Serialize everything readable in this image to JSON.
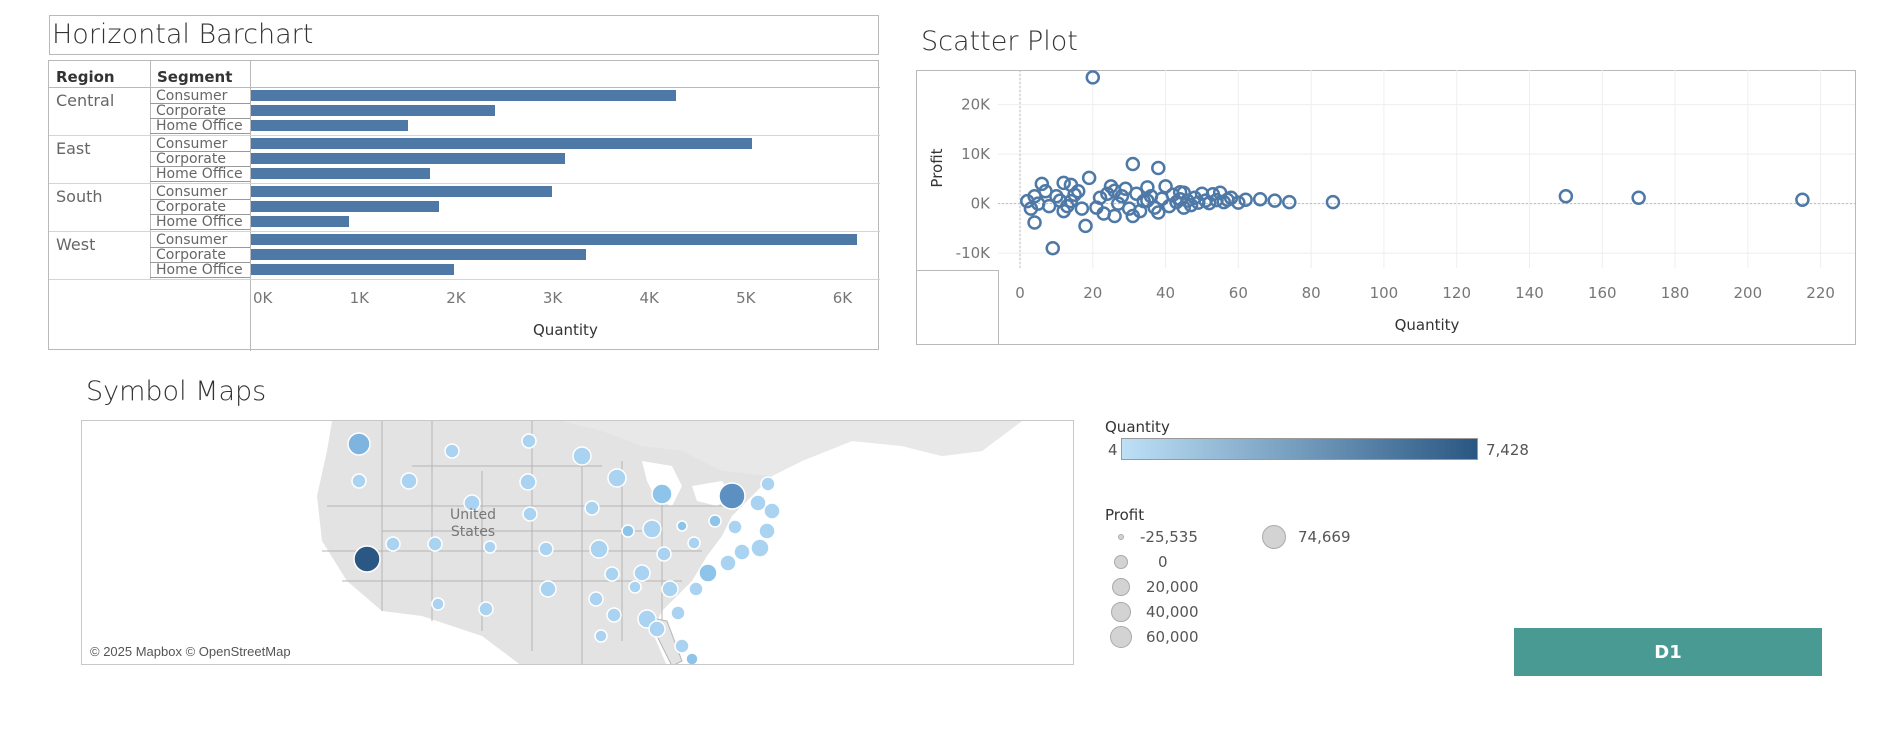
{
  "chart_data": [
    {
      "type": "bar",
      "title": "Horizontal Barchart",
      "headers": {
        "region": "Region",
        "segment": "Segment"
      },
      "regions": [
        {
          "name": "Central",
          "segments": [
            {
              "name": "Consumer",
              "value": 4400
            },
            {
              "name": "Corporate",
              "value": 2530
            },
            {
              "name": "Home Office",
              "value": 1620
            }
          ]
        },
        {
          "name": "East",
          "segments": [
            {
              "name": "Consumer",
              "value": 5190
            },
            {
              "name": "Corporate",
              "value": 3250
            },
            {
              "name": "Home Office",
              "value": 1850
            }
          ]
        },
        {
          "name": "South",
          "segments": [
            {
              "name": "Consumer",
              "value": 3120
            },
            {
              "name": "Corporate",
              "value": 1950
            },
            {
              "name": "Home Office",
              "value": 1010
            }
          ]
        },
        {
          "name": "West",
          "segments": [
            {
              "name": "Consumer",
              "value": 6270
            },
            {
              "name": "Corporate",
              "value": 3470
            },
            {
              "name": "Home Office",
              "value": 2100
            }
          ]
        }
      ],
      "xlabel": "Quantity",
      "xlim": [
        0,
        6500
      ],
      "xticks": [
        {
          "value": 0,
          "label": "0K"
        },
        {
          "value": 1000,
          "label": "1K"
        },
        {
          "value": 2000,
          "label": "2K"
        },
        {
          "value": 3000,
          "label": "3K"
        },
        {
          "value": 4000,
          "label": "4K"
        },
        {
          "value": 5000,
          "label": "5K"
        },
        {
          "value": 6000,
          "label": "6K"
        }
      ],
      "bar_color": "#4e79a7"
    },
    {
      "type": "scatter",
      "title": "Scatter Plot",
      "xlabel": "Quantity",
      "ylabel": "Profit",
      "xlim": [
        0,
        230
      ],
      "ylim": [
        -13000,
        27000
      ],
      "xticks": [
        0,
        20,
        40,
        60,
        80,
        100,
        120,
        140,
        160,
        180,
        200,
        220
      ],
      "yticks": [
        {
          "value": 20000,
          "label": "20K"
        },
        {
          "value": 10000,
          "label": "10K"
        },
        {
          "value": 0,
          "label": "0K"
        },
        {
          "value": -10000,
          "label": "-10K"
        }
      ],
      "grid": true,
      "marker_color": "#4e79a7",
      "points": [
        [
          20,
          25500
        ],
        [
          31,
          8000
        ],
        [
          38,
          7200
        ],
        [
          19,
          5200
        ],
        [
          6,
          4000
        ],
        [
          12,
          4200
        ],
        [
          14,
          3800
        ],
        [
          25,
          3500
        ],
        [
          29,
          3000
        ],
        [
          35,
          3300
        ],
        [
          40,
          3500
        ],
        [
          45,
          2200
        ],
        [
          50,
          2000
        ],
        [
          53,
          1900
        ],
        [
          55,
          2200
        ],
        [
          58,
          1200
        ],
        [
          62,
          800
        ],
        [
          66,
          900
        ],
        [
          70,
          600
        ],
        [
          74,
          300
        ],
        [
          86,
          300
        ],
        [
          150,
          1500
        ],
        [
          170,
          1200
        ],
        [
          215,
          800
        ],
        [
          4,
          -3800
        ],
        [
          18,
          -4500
        ],
        [
          9,
          -9000
        ],
        [
          26,
          -2500
        ],
        [
          33,
          -1500
        ],
        [
          45,
          -800
        ],
        [
          2,
          500
        ],
        [
          4,
          1500
        ],
        [
          8,
          -500
        ],
        [
          10,
          1500
        ],
        [
          12,
          -1500
        ],
        [
          14,
          500
        ],
        [
          16,
          2500
        ],
        [
          17,
          -1000
        ],
        [
          22,
          1200
        ],
        [
          23,
          -2000
        ],
        [
          24,
          2000
        ],
        [
          27,
          0
        ],
        [
          28,
          1500
        ],
        [
          30,
          -1000
        ],
        [
          32,
          2000
        ],
        [
          34,
          500
        ],
        [
          36,
          1500
        ],
        [
          37,
          -800
        ],
        [
          39,
          1000
        ],
        [
          41,
          -500
        ],
        [
          42,
          1800
        ],
        [
          43,
          300
        ],
        [
          44,
          900
        ],
        [
          46,
          600
        ],
        [
          47,
          -300
        ],
        [
          48,
          1200
        ],
        [
          49,
          200
        ],
        [
          51,
          600
        ],
        [
          52,
          100
        ],
        [
          54,
          700
        ],
        [
          56,
          300
        ],
        [
          57,
          800
        ],
        [
          60,
          200
        ],
        [
          3,
          -1000
        ],
        [
          5,
          0
        ],
        [
          7,
          2500
        ],
        [
          11,
          600
        ],
        [
          13,
          -500
        ],
        [
          15,
          1800
        ],
        [
          21,
          -800
        ],
        [
          26,
          2600
        ],
        [
          31,
          -2500
        ],
        [
          35,
          600
        ],
        [
          38,
          -1800
        ],
        [
          44,
          2300
        ]
      ]
    }
  ],
  "map": {
    "title": "Symbol Maps",
    "country_label_1": "United",
    "country_label_2": "States",
    "attribution": "© 2025 Mapbox © OpenStreetMap"
  },
  "legend_quantity": {
    "title": "Quantity",
    "min": "4",
    "max": "7,428"
  },
  "legend_profit": {
    "title": "Profit",
    "items": [
      "-25,535",
      "0",
      "20,000",
      "40,000",
      "60,000",
      "74,669"
    ]
  },
  "button": {
    "label": "D1"
  }
}
